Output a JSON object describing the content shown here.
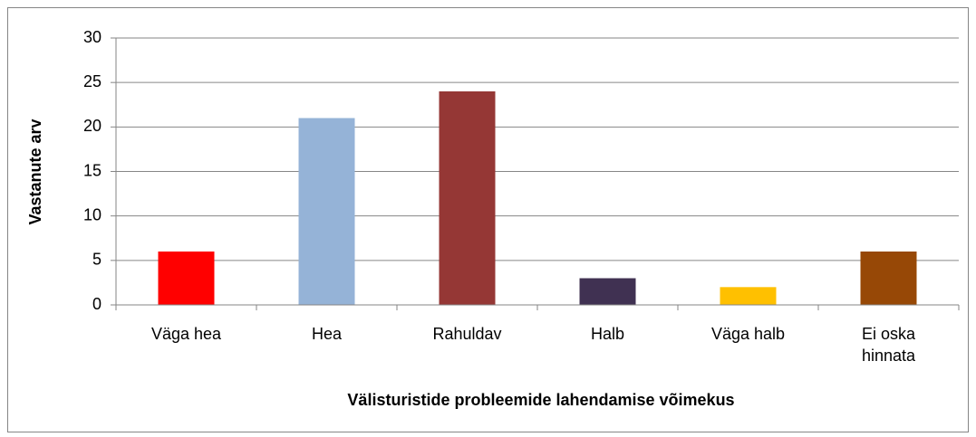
{
  "chart_data": {
    "type": "bar",
    "categories": [
      "Väga hea",
      "Hea",
      "Rahuldav",
      "Halb",
      "Väga halb",
      "Ei oska hinnata"
    ],
    "values": [
      6,
      21,
      24,
      3,
      2,
      6
    ],
    "colors": [
      "#ff0000",
      "#95b3d7",
      "#953735",
      "#403152",
      "#ffc000",
      "#974806"
    ],
    "xlabel": "Välisturistide probleemide lahendamise võimekus",
    "ylabel": "Vastanute arv",
    "ylim": [
      0,
      30
    ],
    "yticks": [
      0,
      5,
      10,
      15,
      20,
      25,
      30
    ],
    "grid": true
  }
}
